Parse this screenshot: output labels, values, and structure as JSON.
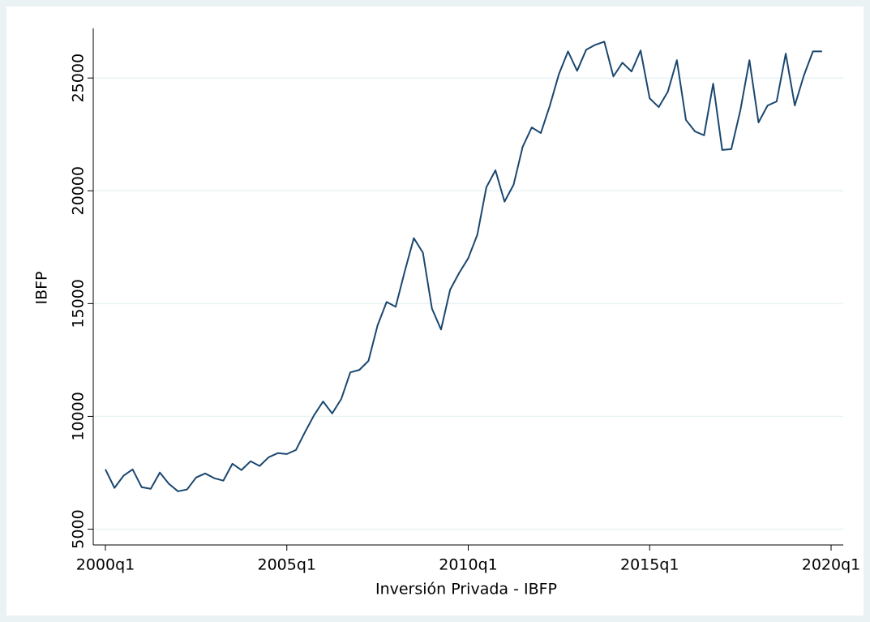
{
  "chart_data": {
    "type": "line",
    "xlabel": "Inversión Privada - IBFP",
    "ylabel": "IBFP",
    "x": [
      "2000q1",
      "2000q2",
      "2000q3",
      "2000q4",
      "2001q1",
      "2001q2",
      "2001q3",
      "2001q4",
      "2002q1",
      "2002q2",
      "2002q3",
      "2002q4",
      "2003q1",
      "2003q2",
      "2003q3",
      "2003q4",
      "2004q1",
      "2004q2",
      "2004q3",
      "2004q4",
      "2005q1",
      "2005q2",
      "2005q3",
      "2005q4",
      "2006q1",
      "2006q2",
      "2006q3",
      "2006q4",
      "2007q1",
      "2007q2",
      "2007q3",
      "2007q4",
      "2008q1",
      "2008q2",
      "2008q3",
      "2008q4",
      "2009q1",
      "2009q2",
      "2009q3",
      "2009q4",
      "2010q1",
      "2010q2",
      "2010q3",
      "2010q4",
      "2011q1",
      "2011q2",
      "2011q3",
      "2011q4",
      "2012q1",
      "2012q2",
      "2012q3",
      "2012q4",
      "2013q1",
      "2013q2",
      "2013q3",
      "2013q4",
      "2014q1",
      "2014q2",
      "2014q3",
      "2014q4",
      "2015q1",
      "2015q2",
      "2015q3",
      "2015q4",
      "2016q1",
      "2016q2",
      "2016q3",
      "2016q4",
      "2017q1",
      "2017q2",
      "2017q3",
      "2017q4",
      "2018q1",
      "2018q2",
      "2018q3",
      "2018q4",
      "2019q1",
      "2019q2",
      "2019q3",
      "2019q4"
    ],
    "series": [
      {
        "color": "#1a476f",
        "values": [
          7650,
          6830,
          7370,
          7650,
          6860,
          6790,
          7510,
          7010,
          6680,
          6760,
          7290,
          7470,
          7260,
          7150,
          7900,
          7620,
          8010,
          7800,
          8190,
          8370,
          8330,
          8510,
          9300,
          10050,
          10660,
          10130,
          10770,
          11950,
          12060,
          12460,
          14030,
          15070,
          14860,
          16430,
          17900,
          17260,
          14780,
          13850,
          15610,
          16360,
          17010,
          18050,
          20160,
          20910,
          19520,
          20270,
          21950,
          22810,
          22560,
          23780,
          25180,
          26180,
          25320,
          26250,
          26470,
          26610,
          25070,
          25680,
          25290,
          26220,
          24100,
          23710,
          24390,
          25790,
          23140,
          22630,
          22460,
          24750,
          21810,
          21850,
          23570,
          25790,
          23030,
          23780,
          23960,
          26080,
          23780,
          25110,
          26180,
          26180
        ]
      }
    ],
    "xlim": [
      "2000q1",
      "2020q1"
    ],
    "xticks": [
      "2000q1",
      "2005q1",
      "2010q1",
      "2015q1",
      "2020q1"
    ],
    "ylim": [
      4300,
      27200
    ],
    "yticks": [
      5000,
      10000,
      15000,
      20000,
      25000
    ],
    "grid": true
  }
}
